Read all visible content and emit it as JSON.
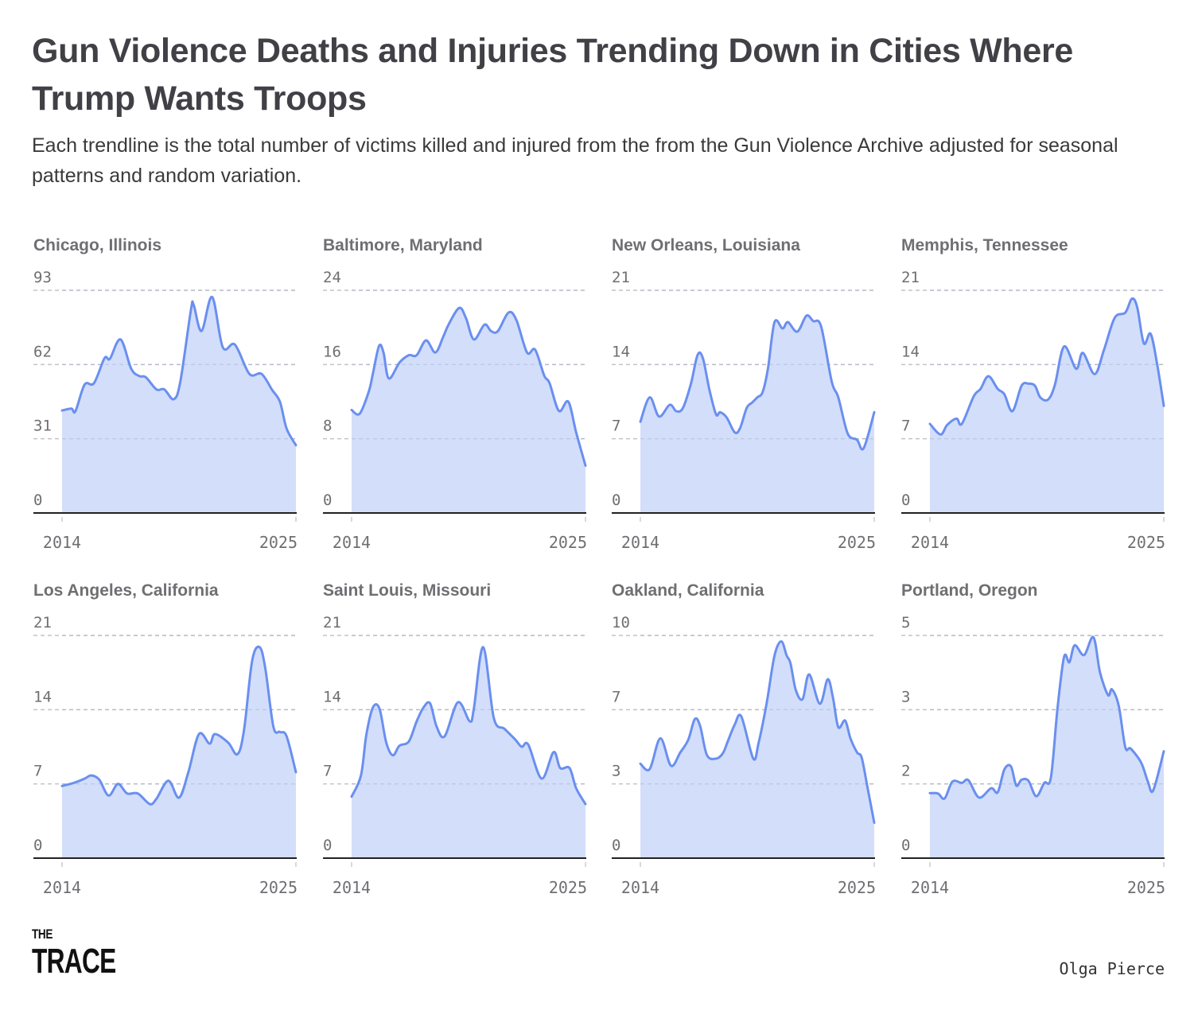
{
  "header": {
    "title": "Gun Violence Deaths and Injuries Trending Down in Cities Where Trump Wants Troops",
    "subtitle": "Each trendline is the total number of victims killed and injured from the from the Gun Violence Archive adjusted for seasonal patterns and random variation."
  },
  "footer": {
    "logo_line1": "THE",
    "logo_line2": "TRACE",
    "author": "Olga Pierce"
  },
  "colors": {
    "line": "#6a8fef",
    "area": "#d3defa",
    "grid": "#c4c4c4",
    "axis": "#222222",
    "text": "#6f6f73"
  },
  "chart_data": [
    {
      "type": "area",
      "title": "Chicago, Illinois",
      "xlim": [
        2014,
        2025
      ],
      "x_tick_labels": [
        "2014",
        "2025"
      ],
      "ylim": [
        0,
        93
      ],
      "y_tick_labels": [
        "0",
        "31",
        "62",
        "93"
      ],
      "grid": "dashed-horizontal",
      "series": [
        {
          "x": [
            2014,
            2014.44,
            2014.63,
            2015.06,
            2015.5,
            2016,
            2016.25,
            2016.75,
            2017.25,
            2017.63,
            2017.94,
            2018.44,
            2018.81,
            2019.25,
            2019.56,
            2020.06,
            2020.19,
            2020.56,
            2021.06,
            2021.56,
            2022.13,
            2022.81,
            2023.38,
            2023.88,
            2024.25,
            2024.56,
            2025
          ],
          "y": [
            42.8,
            43.6,
            42.5,
            53.6,
            54.2,
            64.7,
            64.4,
            72.5,
            60.3,
            57.2,
            56.7,
            51.6,
            51.6,
            47.5,
            54.7,
            84.7,
            86.9,
            76.0,
            90.2,
            69.2,
            70.3,
            58.1,
            58.1,
            51.4,
            46.4,
            35.3,
            28.3
          ]
        }
      ]
    },
    {
      "type": "area",
      "title": "Baltimore, Maryland",
      "xlim": [
        2014,
        2025
      ],
      "x_tick_labels": [
        "2014",
        "2025"
      ],
      "ylim": [
        0,
        24
      ],
      "y_tick_labels": [
        "0",
        "8",
        "16",
        "24"
      ],
      "grid": "dashed-horizontal",
      "series": [
        {
          "x": [
            2014,
            2014.38,
            2014.81,
            2015,
            2015.29,
            2015.5,
            2015.75,
            2016.25,
            2016.69,
            2017.06,
            2017.5,
            2017.94,
            2018.31,
            2018.56,
            2019.06,
            2019.38,
            2019.75,
            2020.25,
            2020.56,
            2020.88,
            2021.38,
            2021.75,
            2022.25,
            2022.63,
            2023.06,
            2023.31,
            2023.75,
            2024.19,
            2024.56,
            2025
          ],
          "y": [
            11.1,
            10.7,
            13.1,
            15.0,
            18.0,
            17.3,
            14.5,
            16.2,
            17.0,
            17.0,
            18.6,
            17.3,
            19.0,
            20.3,
            22.1,
            21.0,
            18.7,
            20.3,
            19.6,
            19.6,
            21.6,
            20.8,
            17.3,
            17.6,
            14.8,
            14.0,
            11.0,
            12.0,
            8.7,
            5.1
          ]
        }
      ]
    },
    {
      "type": "area",
      "title": "New Orleans, Louisiana",
      "xlim": [
        2014,
        2025
      ],
      "x_tick_labels": [
        "2014",
        "2025"
      ],
      "ylim": [
        0,
        21
      ],
      "y_tick_labels": [
        "0",
        "7",
        "14",
        "21"
      ],
      "grid": "dashed-horizontal",
      "series": [
        {
          "x": [
            2014,
            2014.44,
            2014.88,
            2015.38,
            2015.69,
            2016,
            2016.38,
            2016.69,
            2016.94,
            2017.25,
            2017.56,
            2017.75,
            2018.06,
            2018.44,
            2018.69,
            2019,
            2019.25,
            2019.5,
            2019.75,
            2020,
            2020.31,
            2020.69,
            2020.94,
            2021.38,
            2021.81,
            2022.13,
            2022.5,
            2023,
            2023.31,
            2023.75,
            2024.19,
            2024.5,
            2025
          ],
          "y": [
            8.6,
            10.9,
            9.1,
            10.2,
            9.6,
            9.9,
            12.2,
            14.9,
            14.6,
            11.6,
            9.3,
            9.5,
            9.0,
            7.6,
            8.0,
            9.9,
            10.4,
            10.9,
            11.4,
            13.6,
            18.0,
            17.4,
            18.0,
            17.1,
            18.6,
            18.1,
            17.6,
            12.4,
            10.9,
            7.5,
            6.9,
            6.1,
            9.5
          ]
        }
      ]
    },
    {
      "type": "area",
      "title": "Memphis, Tennessee",
      "xlim": [
        2014,
        2025
      ],
      "x_tick_labels": [
        "2014",
        "2025"
      ],
      "ylim": [
        0,
        21
      ],
      "y_tick_labels": [
        "0",
        "7",
        "14",
        "21"
      ],
      "grid": "dashed-horizontal",
      "series": [
        {
          "x": [
            2014,
            2014.5,
            2014.81,
            2015.25,
            2015.5,
            2016.06,
            2016.38,
            2016.75,
            2017.19,
            2017.5,
            2017.88,
            2018.31,
            2018.63,
            2018.94,
            2019.19,
            2019.56,
            2019.88,
            2020.31,
            2020.88,
            2021.19,
            2021.75,
            2022.19,
            2022.69,
            2023.19,
            2023.5,
            2023.75,
            2024.06,
            2024.38,
            2024.69,
            2025
          ],
          "y": [
            8.4,
            7.4,
            8.3,
            8.9,
            8.4,
            11.0,
            11.7,
            12.9,
            11.7,
            11.2,
            9.6,
            12.0,
            12.2,
            12.0,
            10.9,
            10.7,
            12.1,
            15.7,
            13.6,
            15.1,
            13.1,
            15.4,
            18.4,
            18.9,
            20.2,
            19.4,
            16.0,
            16.9,
            14.0,
            10.1
          ]
        }
      ]
    },
    {
      "type": "area",
      "title": "Los Angeles, California",
      "xlim": [
        2014,
        2025
      ],
      "x_tick_labels": [
        "2014",
        "2025"
      ],
      "ylim": [
        0,
        21
      ],
      "y_tick_labels": [
        "0",
        "7",
        "14",
        "21"
      ],
      "grid": "dashed-horizontal",
      "series": [
        {
          "x": [
            2014,
            2014.56,
            2015.06,
            2015.38,
            2015.75,
            2016.19,
            2016.63,
            2017.06,
            2017.56,
            2018.13,
            2018.44,
            2019,
            2019.5,
            2019.94,
            2020.44,
            2020.94,
            2021.19,
            2021.81,
            2022.25,
            2022.56,
            2022.94,
            2023.29,
            2023.56,
            2023.94,
            2024.25,
            2024.56,
            2025
          ],
          "y": [
            6.8,
            7.1,
            7.5,
            7.8,
            7.4,
            5.9,
            7.0,
            6.1,
            6.1,
            5.1,
            5.6,
            7.3,
            5.7,
            8.1,
            11.7,
            10.8,
            11.7,
            10.9,
            9.8,
            12.1,
            18.6,
            19.9,
            17.9,
            12.4,
            11.9,
            11.5,
            8.1
          ]
        }
      ]
    },
    {
      "type": "area",
      "title": "Saint Louis, Missouri",
      "xlim": [
        2014,
        2025
      ],
      "x_tick_labels": [
        "2014",
        "2025"
      ],
      "ylim": [
        0,
        21
      ],
      "y_tick_labels": [
        "0",
        "7",
        "14",
        "21"
      ],
      "grid": "dashed-horizontal",
      "series": [
        {
          "x": [
            2014,
            2014.44,
            2014.69,
            2015,
            2015.31,
            2015.63,
            2015.94,
            2016.25,
            2016.69,
            2017.06,
            2017.38,
            2017.69,
            2018,
            2018.38,
            2019,
            2019.56,
            2019.75,
            2020.19,
            2020.69,
            2021.19,
            2021.69,
            2022,
            2022.31,
            2022.94,
            2023.5,
            2023.81,
            2024.25,
            2024.56,
            2025
          ],
          "y": [
            5.8,
            7.8,
            11.6,
            14.2,
            14.1,
            10.9,
            9.7,
            10.6,
            11.0,
            12.9,
            14.2,
            14.6,
            12.4,
            11.5,
            14.7,
            12.9,
            14.1,
            19.9,
            13.2,
            12.2,
            11.2,
            10.5,
            10.7,
            7.5,
            10.0,
            8.5,
            8.5,
            6.6,
            5.1
          ]
        }
      ]
    },
    {
      "type": "area",
      "title": "Oakland, California",
      "xlim": [
        2014,
        2025
      ],
      "x_tick_labels": [
        "2014",
        "2025"
      ],
      "ylim": [
        0,
        10
      ],
      "y_tick_labels": [
        "0",
        "3",
        "7",
        "10"
      ],
      "grid": "dashed-horizontal",
      "series": [
        {
          "x": [
            2014,
            2014.44,
            2014.94,
            2015.44,
            2015.88,
            2016.25,
            2016.56,
            2016.81,
            2017.13,
            2017.56,
            2017.88,
            2018.13,
            2018.44,
            2018.75,
            2019.31,
            2019.56,
            2019.94,
            2020.31,
            2020.63,
            2020.88,
            2021.06,
            2021.31,
            2021.63,
            2021.94,
            2022.44,
            2022.81,
            2023.06,
            2023.31,
            2023.63,
            2023.88,
            2024.19,
            2024.41,
            2024.69,
            2025
          ],
          "y": [
            4.24,
            4.0,
            5.38,
            4.15,
            4.75,
            5.31,
            6.24,
            5.94,
            4.63,
            4.47,
            4.71,
            5.29,
            6.0,
            6.36,
            4.47,
            5.17,
            6.96,
            9.1,
            9.73,
            9.1,
            8.75,
            7.55,
            7.14,
            8.25,
            6.93,
            8.03,
            7.2,
            5.88,
            6.18,
            5.38,
            4.75,
            4.51,
            3.14,
            1.59
          ]
        }
      ]
    },
    {
      "type": "area",
      "title": "Portland, Oregon",
      "xlim": [
        2014,
        2025
      ],
      "x_tick_labels": [
        "2014",
        "2025"
      ],
      "ylim": [
        0,
        5
      ],
      "y_tick_labels": [
        "0",
        "2",
        "3",
        "5"
      ],
      "grid": "dashed-horizontal",
      "series": [
        {
          "x": [
            2014,
            2014.38,
            2014.69,
            2015.06,
            2015.5,
            2015.81,
            2016.31,
            2016.88,
            2017.19,
            2017.5,
            2017.81,
            2018.06,
            2018.31,
            2018.63,
            2019,
            2019.38,
            2019.69,
            2020,
            2020.31,
            2020.56,
            2020.81,
            2021.25,
            2021.69,
            2022,
            2022.38,
            2022.56,
            2022.88,
            2023.19,
            2023.44,
            2023.94,
            2024.25,
            2024.5,
            2025
          ],
          "y": [
            1.46,
            1.45,
            1.34,
            1.72,
            1.69,
            1.75,
            1.36,
            1.57,
            1.48,
            1.99,
            2.06,
            1.63,
            1.76,
            1.74,
            1.39,
            1.69,
            1.81,
            3.36,
            4.52,
            4.4,
            4.78,
            4.56,
            4.96,
            4.17,
            3.66,
            3.79,
            3.42,
            2.49,
            2.46,
            2.14,
            1.72,
            1.52,
            2.4
          ]
        }
      ]
    }
  ]
}
